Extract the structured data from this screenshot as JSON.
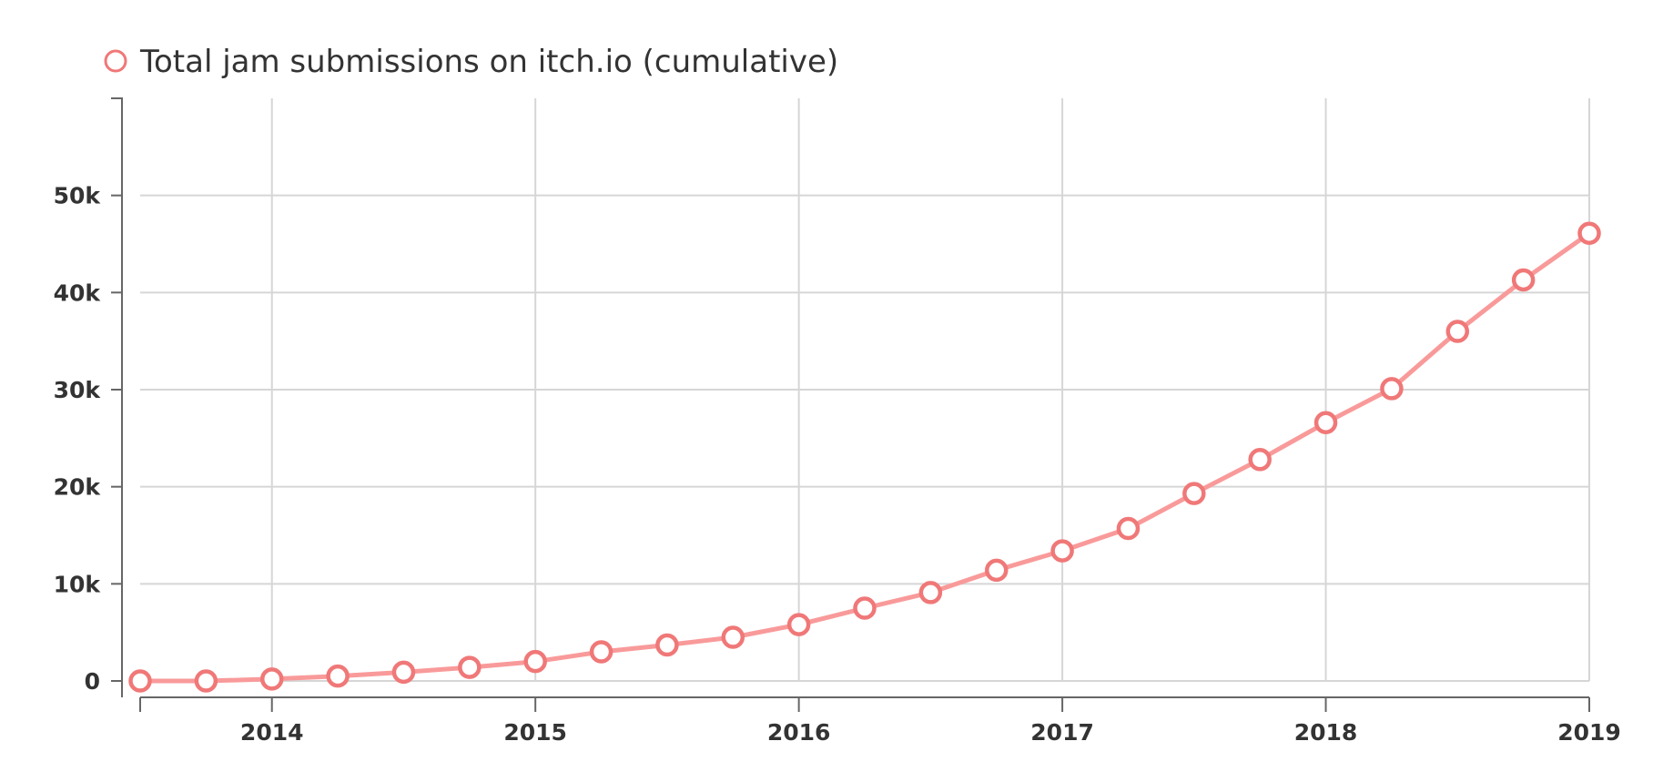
{
  "chart_data": {
    "type": "line",
    "legend_position": "top-left",
    "grid": true,
    "x_ticks": [
      "2014",
      "2015",
      "2016",
      "2017",
      "2018",
      "2019"
    ],
    "y_ticks": [
      "0",
      "10k",
      "20k",
      "30k",
      "40k",
      "50k"
    ],
    "ylim": [
      0,
      60000
    ],
    "xlim": [
      2013.5,
      2019
    ],
    "series": [
      {
        "name": "Total jam submissions on itch.io (cumulative)",
        "color": "#f99a9a",
        "marker_color": "#f07878",
        "x": [
          2013.5,
          2013.75,
          2014.0,
          2014.25,
          2014.5,
          2014.75,
          2015.0,
          2015.25,
          2015.5,
          2015.75,
          2016.0,
          2016.25,
          2016.5,
          2016.75,
          2017.0,
          2017.25,
          2017.5,
          2017.75,
          2018.0,
          2018.25,
          2018.5,
          2018.75,
          2019.0
        ],
        "values": [
          0,
          0,
          200,
          500,
          900,
          1400,
          2000,
          3000,
          3700,
          4500,
          5800,
          7500,
          9100,
          11400,
          13400,
          15700,
          19300,
          22800,
          26600,
          30100,
          36000,
          41300,
          46100
        ]
      }
    ]
  }
}
